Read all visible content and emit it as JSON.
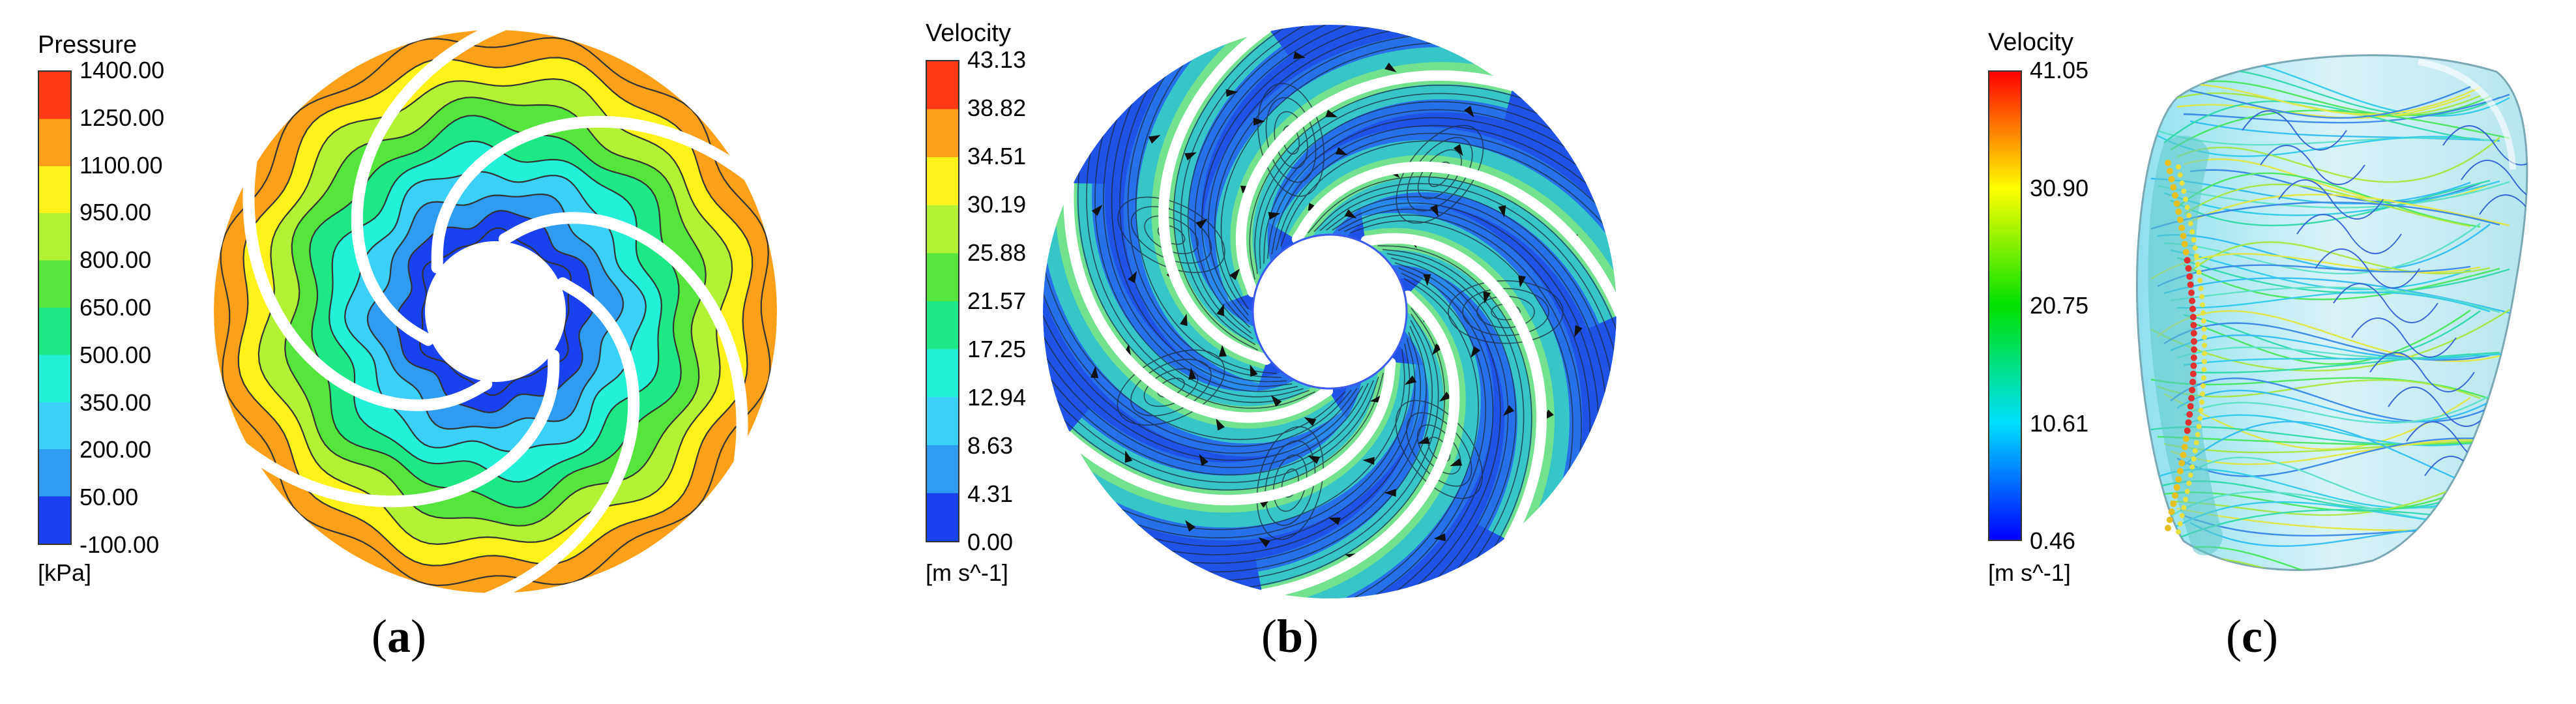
{
  "panels": [
    {
      "id": "a",
      "caption_open": "(",
      "caption_letter": "a",
      "caption_close": ")",
      "legend": {
        "title": "Pressure",
        "unit": "[kPa]",
        "ticks": [
          "1400.00",
          "1250.00",
          "1100.00",
          "950.00",
          "800.00",
          "650.00",
          "500.00",
          "350.00",
          "200.00",
          "50.00",
          "-100.00"
        ],
        "colors": [
          "#ff3a16",
          "#fca01a",
          "#fff21a",
          "#b2f234",
          "#55e53c",
          "#1ee885",
          "#22f0d7",
          "#3ad0f7",
          "#2f9cf2",
          "#1a41f0"
        ]
      }
    },
    {
      "id": "b",
      "caption_open": "(",
      "caption_letter": "b",
      "caption_close": ")",
      "legend": {
        "title": "Velocity",
        "unit": "[m s^-1]",
        "ticks": [
          "43.13",
          "38.82",
          "34.51",
          "30.19",
          "25.88",
          "21.57",
          "17.25",
          "12.94",
          "8.63",
          "4.31",
          "0.00"
        ],
        "colors": [
          "#ff3a16",
          "#fca01a",
          "#fff21a",
          "#b2f234",
          "#55e53c",
          "#1ee885",
          "#22f0d7",
          "#3ad0f7",
          "#2f9cf2",
          "#1a41f0"
        ]
      }
    },
    {
      "id": "c",
      "caption_open": "(",
      "caption_letter": "c",
      "caption_close": ")",
      "legend": {
        "title": "Velocity",
        "unit": "[m s^-1]",
        "ticks": [
          "41.05",
          "30.90",
          "20.75",
          "10.61",
          "0.46"
        ],
        "gradient": [
          "#ff0000",
          "#ffff00",
          "#00e000",
          "#00e0ff",
          "#0000ff"
        ]
      }
    }
  ]
}
